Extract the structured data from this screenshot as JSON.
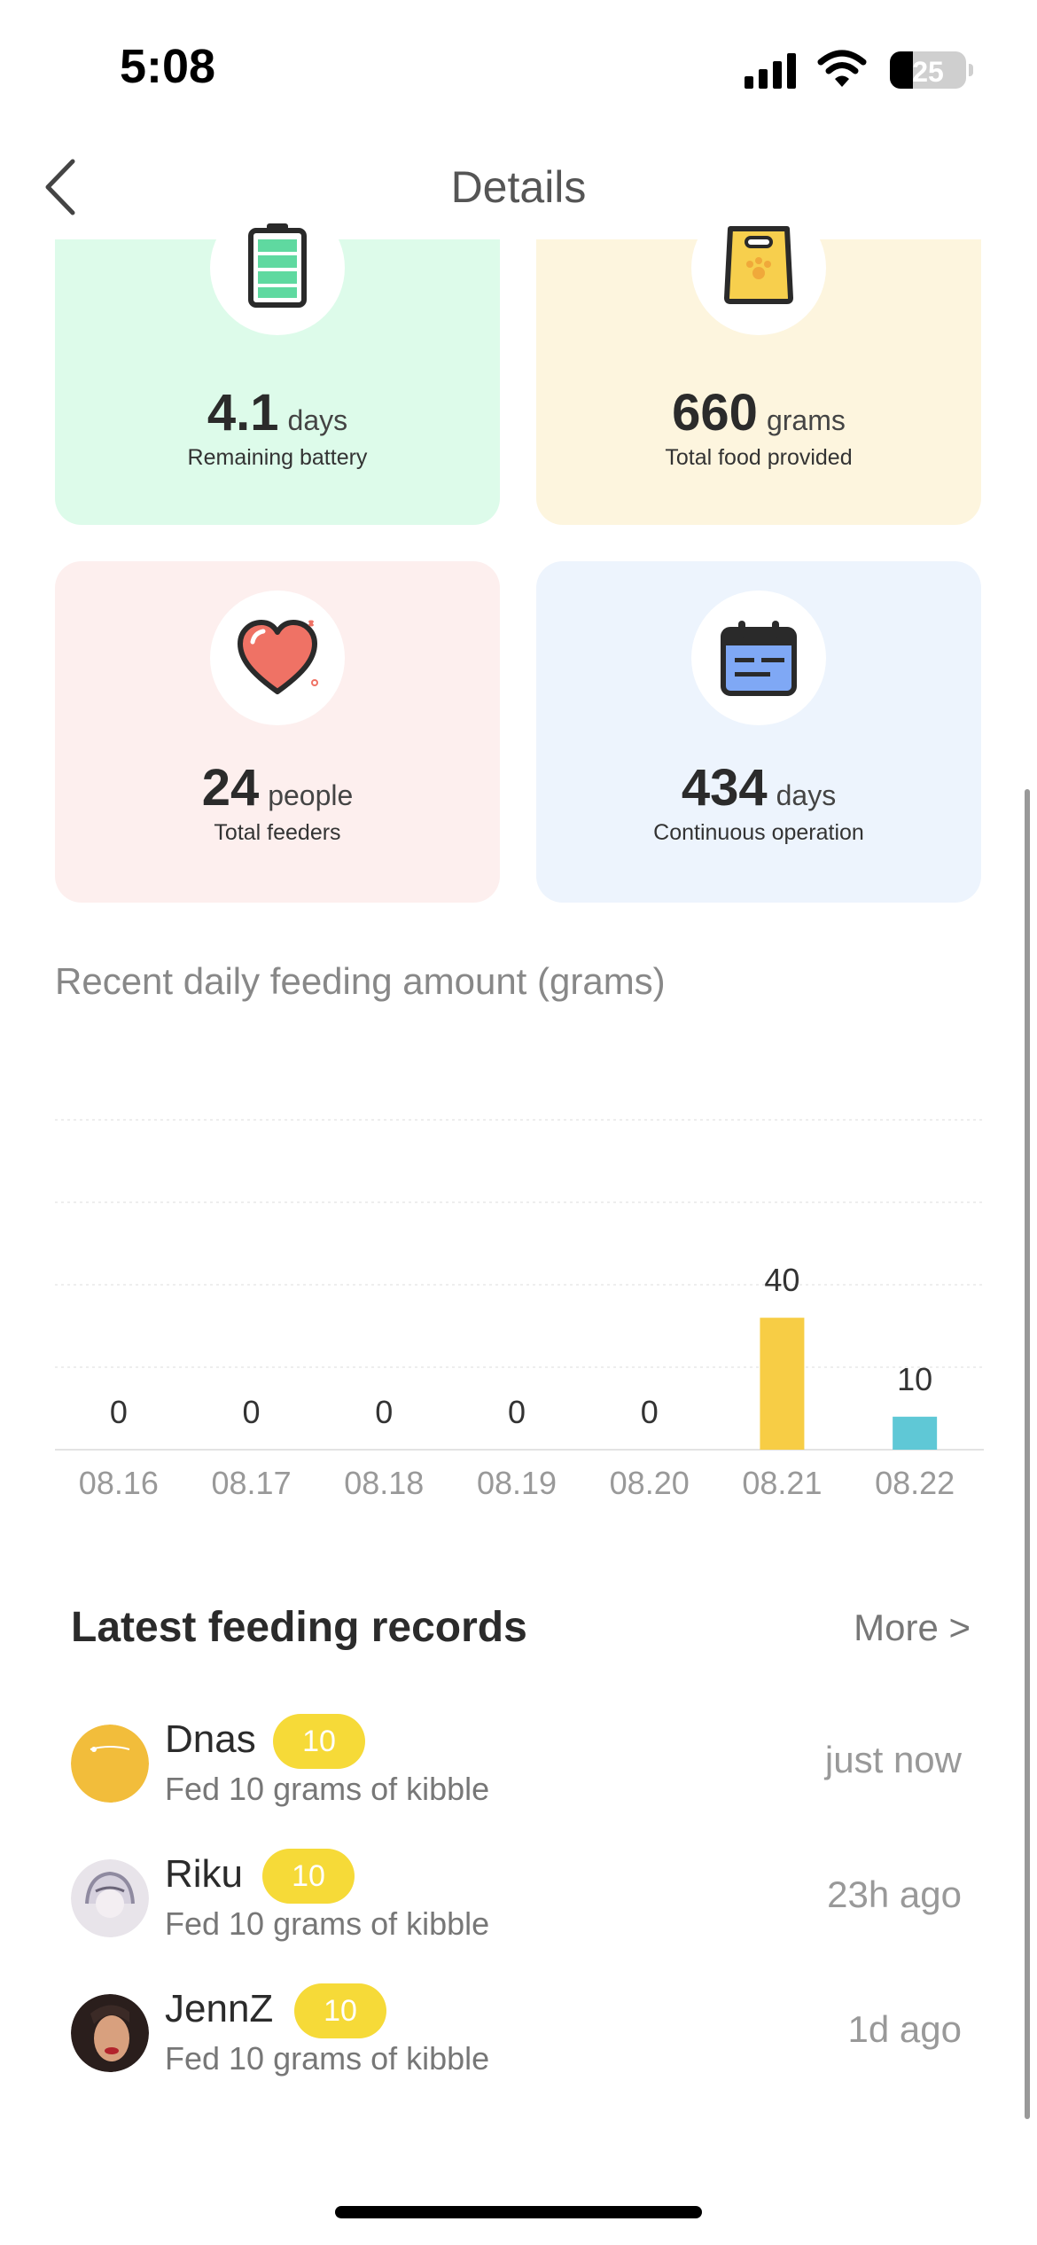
{
  "status_bar": {
    "time": "5:08",
    "battery": "25"
  },
  "nav": {
    "title": "Details",
    "back_icon": "chevron-left-icon"
  },
  "cards": [
    {
      "value": "4.1",
      "unit": "days",
      "caption": "Remaining battery",
      "icon": "battery-icon",
      "bg": "#ddfbea"
    },
    {
      "value": "660",
      "unit": "grams",
      "caption": "Total food provided",
      "icon": "food-bag-icon",
      "bg": "#fdf5de"
    },
    {
      "value": "24",
      "unit": "people",
      "caption": "Total feeders",
      "icon": "heart-icon",
      "bg": "#fdefee"
    },
    {
      "value": "434",
      "unit": "days",
      "caption": "Continuous operation",
      "icon": "calendar-icon",
      "bg": "#edf4fd"
    }
  ],
  "chart_title": "Recent daily feeding amount (grams)",
  "chart_data": {
    "type": "bar",
    "categories": [
      "08.16",
      "08.17",
      "08.18",
      "08.19",
      "08.20",
      "08.21",
      "08.22"
    ],
    "values": [
      0,
      0,
      0,
      0,
      0,
      40,
      10
    ],
    "colors": [
      "#f7cd45",
      "#f7cd45",
      "#f7cd45",
      "#f7cd45",
      "#f7cd45",
      "#f7cd45",
      "#5fc8d6"
    ],
    "title": "Recent daily feeding amount (grams)",
    "xlabel": "",
    "ylabel": "",
    "ylim": [
      0,
      100
    ],
    "grid": true
  },
  "records": {
    "title": "Latest feeding records",
    "more_label": "More >",
    "items": [
      {
        "name": "Dnas",
        "badge": "10",
        "desc": "Fed 10 grams of kibble",
        "time": "just now",
        "avatar": "avatar-dnas"
      },
      {
        "name": "Riku",
        "badge": "10",
        "desc": "Fed 10 grams of kibble",
        "time": "23h ago",
        "avatar": "avatar-riku"
      },
      {
        "name": "JennZ",
        "badge": "10",
        "desc": "Fed 10 grams of kibble",
        "time": "1d ago",
        "avatar": "avatar-jennz"
      }
    ]
  }
}
